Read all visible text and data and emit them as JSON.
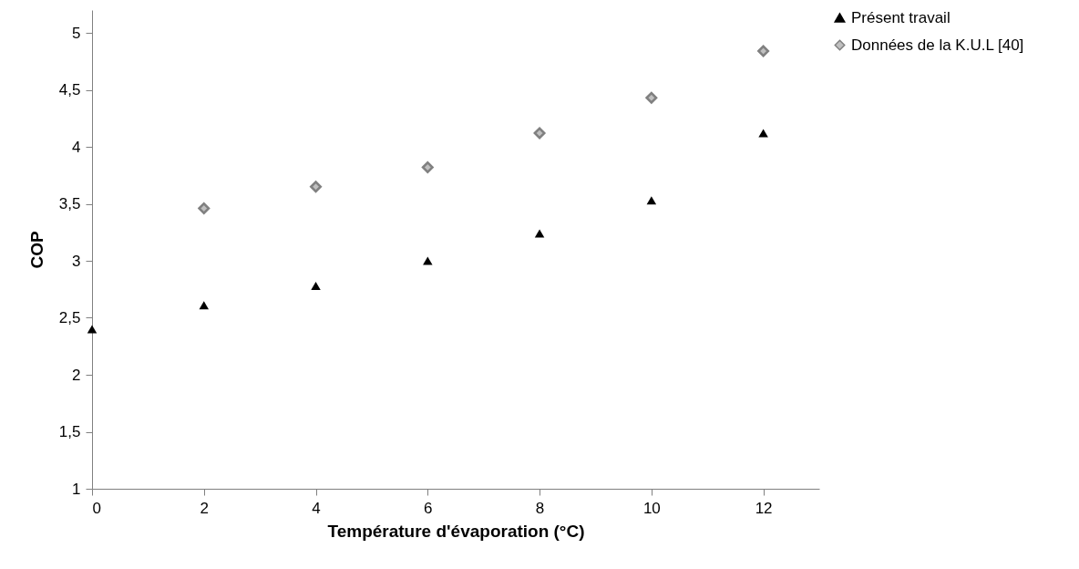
{
  "chart_data": {
    "type": "scatter",
    "xlabel": "Température d'évaporation (°C)",
    "ylabel": "COP",
    "x": [
      0,
      2,
      4,
      6,
      8,
      10,
      12
    ],
    "series": [
      {
        "name": "Présent travail",
        "color": "#000000",
        "marker": "triangle",
        "values": [
          2.4,
          2.61,
          2.78,
          3.0,
          3.24,
          3.53,
          4.12
        ]
      },
      {
        "name": "Données de la K.U.L [40]",
        "color": "#808080",
        "marker": "diamond",
        "values": [
          null,
          3.46,
          3.65,
          3.82,
          4.12,
          4.43,
          4.84
        ]
      }
    ],
    "xlim": [
      0,
      13
    ],
    "xticks": [
      0,
      2,
      4,
      6,
      8,
      10,
      12
    ],
    "ylim": [
      1,
      5.2
    ],
    "yticks": [
      1,
      {
        "value": 1.5,
        "label": "1,5"
      },
      2,
      {
        "value": 2.5,
        "label": "2,5"
      },
      3,
      {
        "value": 3.5,
        "label": "3,5"
      },
      4,
      {
        "value": 4.5,
        "label": "4,5"
      },
      5
    ],
    "grid": false,
    "legend": "right"
  }
}
